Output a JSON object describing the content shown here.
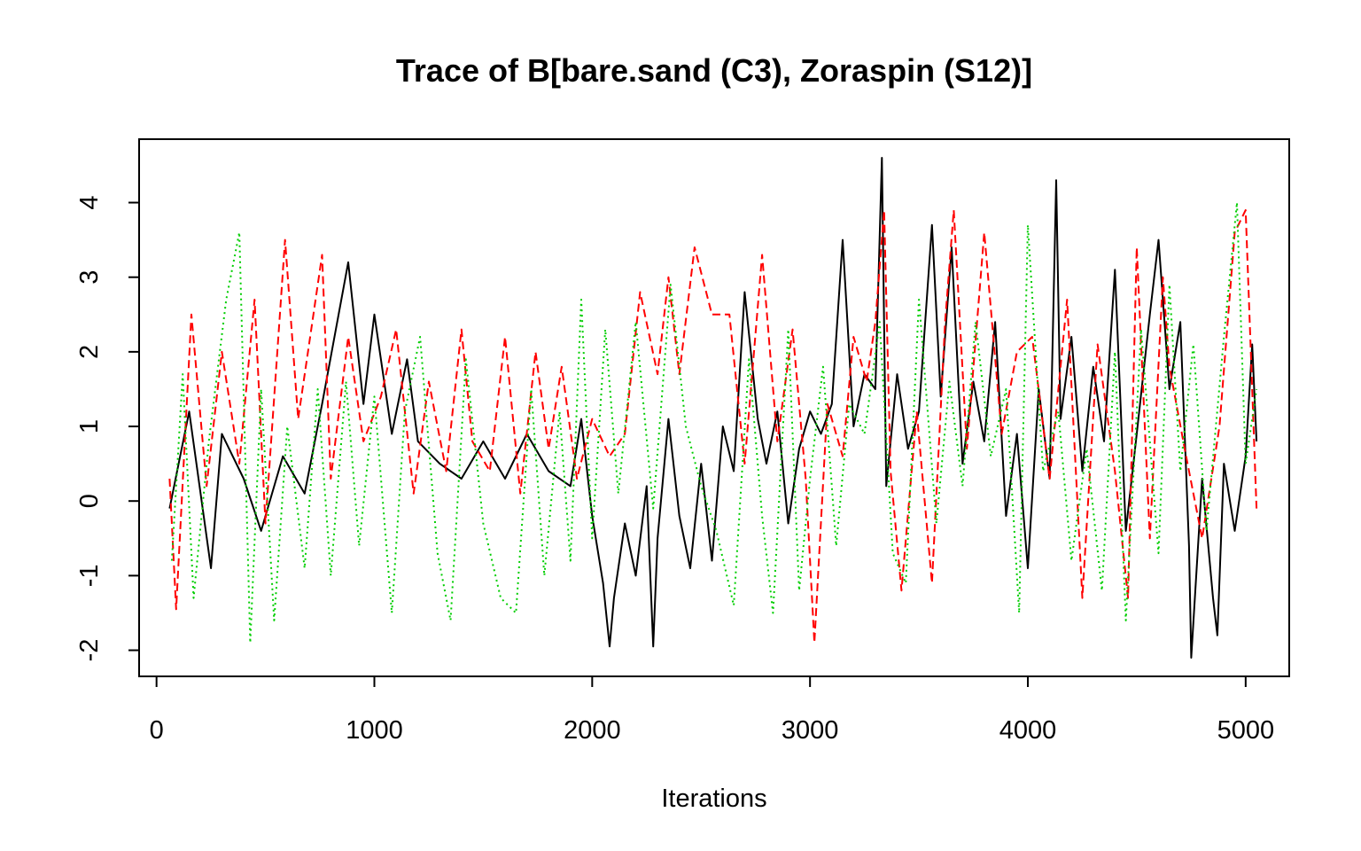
{
  "chart_data": {
    "type": "line",
    "title": "Trace of B[bare.sand (C3), Zoraspin (S12)]",
    "xlabel": "Iterations",
    "ylabel": "",
    "xlim": [
      -80,
      5200
    ],
    "ylim": [
      -2.35,
      4.85
    ],
    "xticks": [
      0,
      1000,
      2000,
      3000,
      4000,
      5000
    ],
    "xtick_labels": [
      "0",
      "1000",
      "2000",
      "3000",
      "4000",
      "5000"
    ],
    "yticks": [
      -2,
      -1,
      0,
      1,
      2,
      3,
      4
    ],
    "ytick_labels": [
      "-2",
      "-1",
      "0",
      "1",
      "2",
      "3",
      "4"
    ],
    "grid": false,
    "legend": "none",
    "series": [
      {
        "color": "#000000",
        "dash": "solid",
        "x": [
          60,
          150,
          250,
          300,
          400,
          480,
          580,
          680,
          760,
          880,
          950,
          1000,
          1080,
          1150,
          1200,
          1300,
          1400,
          1500,
          1600,
          1700,
          1800,
          1900,
          1950,
          2000,
          2050,
          2080,
          2100,
          2150,
          2200,
          2250,
          2280,
          2300,
          2350,
          2400,
          2450,
          2500,
          2550,
          2600,
          2650,
          2700,
          2760,
          2800,
          2850,
          2900,
          2950,
          3000,
          3050,
          3100,
          3150,
          3200,
          3250,
          3300,
          3330,
          3350,
          3400,
          3450,
          3500,
          3560,
          3600,
          3650,
          3700,
          3750,
          3800,
          3850,
          3900,
          3950,
          4000,
          4050,
          4100,
          4130,
          4150,
          4200,
          4250,
          4300,
          4350,
          4400,
          4450,
          4500,
          4560,
          4600,
          4650,
          4700,
          4740,
          4750,
          4800,
          4850,
          4870,
          4900,
          4950,
          5000,
          5030,
          5050
        ],
        "y": [
          -0.1,
          1.2,
          -0.9,
          0.9,
          0.3,
          -0.4,
          0.6,
          0.1,
          1.3,
          3.2,
          1.3,
          2.5,
          0.9,
          1.9,
          0.8,
          0.5,
          0.3,
          0.8,
          0.3,
          0.9,
          0.4,
          0.2,
          1.1,
          -0.2,
          -1.1,
          -1.95,
          -1.3,
          -0.3,
          -1.0,
          0.2,
          -1.95,
          -0.5,
          1.1,
          -0.2,
          -0.9,
          0.5,
          -0.8,
          1.0,
          0.4,
          2.8,
          1.1,
          0.5,
          1.2,
          -0.3,
          0.7,
          1.2,
          0.9,
          1.3,
          3.5,
          1.0,
          1.7,
          1.5,
          4.6,
          0.2,
          1.7,
          0.7,
          1.2,
          3.7,
          1.4,
          3.4,
          0.5,
          1.6,
          0.8,
          2.4,
          -0.2,
          0.9,
          -0.9,
          1.5,
          0.3,
          4.3,
          1.1,
          2.2,
          0.4,
          1.8,
          0.8,
          3.1,
          -0.4,
          0.9,
          2.5,
          3.5,
          1.5,
          2.4,
          -0.6,
          -2.1,
          0.3,
          -1.3,
          -1.8,
          0.5,
          -0.4,
          0.6,
          2.1,
          0.8
        ]
      },
      {
        "color": "#ff0000",
        "dash": "dashed",
        "x": [
          60,
          90,
          160,
          230,
          300,
          380,
          450,
          500,
          590,
          650,
          700,
          760,
          800,
          880,
          950,
          1030,
          1100,
          1180,
          1250,
          1330,
          1400,
          1450,
          1530,
          1600,
          1670,
          1740,
          1800,
          1860,
          1930,
          2000,
          2080,
          2150,
          2220,
          2300,
          2350,
          2400,
          2470,
          2550,
          2630,
          2700,
          2780,
          2850,
          2920,
          2980,
          3020,
          3080,
          3150,
          3200,
          3260,
          3300,
          3340,
          3370,
          3420,
          3490,
          3560,
          3620,
          3660,
          3720,
          3800,
          3880,
          3950,
          4020,
          4100,
          4180,
          4250,
          4320,
          4400,
          4460,
          4500,
          4560,
          4620,
          4650,
          4720,
          4800,
          4880,
          4950,
          5000,
          5050
        ],
        "y": [
          0.3,
          -1.45,
          2.5,
          0.2,
          2.0,
          0.5,
          2.7,
          -0.3,
          3.5,
          1.1,
          2.1,
          3.3,
          0.3,
          2.2,
          0.8,
          1.4,
          2.3,
          0.1,
          1.6,
          0.4,
          2.3,
          0.8,
          0.4,
          2.2,
          0.1,
          2.0,
          0.7,
          1.8,
          0.3,
          1.1,
          0.6,
          0.9,
          2.8,
          1.7,
          3.0,
          1.7,
          3.4,
          2.5,
          2.5,
          0.5,
          3.3,
          0.8,
          2.3,
          0.3,
          -1.9,
          1.3,
          0.6,
          2.2,
          1.6,
          2.4,
          3.9,
          0.4,
          -1.2,
          1.2,
          -1.1,
          2.4,
          3.9,
          0.7,
          3.6,
          0.9,
          2.0,
          2.2,
          0.3,
          2.7,
          -1.3,
          2.1,
          0.4,
          -1.3,
          3.4,
          -0.5,
          3.0,
          1.8,
          0.7,
          -0.5,
          1.0,
          3.6,
          3.9,
          -0.1
        ]
      },
      {
        "color": "#00cd00",
        "dash": "dotted",
        "x": [
          70,
          120,
          170,
          240,
          320,
          380,
          430,
          480,
          540,
          600,
          680,
          740,
          800,
          870,
          930,
          1000,
          1080,
          1140,
          1210,
          1290,
          1350,
          1420,
          1500,
          1580,
          1650,
          1720,
          1780,
          1850,
          1900,
          1950,
          2000,
          2060,
          2120,
          2200,
          2280,
          2360,
          2430,
          2500,
          2570,
          2650,
          2720,
          2780,
          2830,
          2900,
          2950,
          3000,
          3060,
          3120,
          3180,
          3250,
          3320,
          3380,
          3440,
          3500,
          3580,
          3640,
          3700,
          3760,
          3830,
          3900,
          3960,
          4000,
          4070,
          4140,
          4200,
          4270,
          4340,
          4400,
          4450,
          4520,
          4600,
          4650,
          4700,
          4760,
          4820,
          4900,
          4960,
          5000,
          5050
        ],
        "y": [
          -0.8,
          1.7,
          -1.3,
          0.8,
          2.7,
          3.6,
          -1.9,
          1.5,
          -1.6,
          1.0,
          -0.9,
          1.5,
          -1.0,
          1.6,
          -0.6,
          1.4,
          -1.5,
          1.2,
          2.2,
          -0.7,
          -1.6,
          1.9,
          -0.3,
          -1.3,
          -1.5,
          1.5,
          -1.0,
          1.2,
          -0.8,
          2.7,
          -0.5,
          2.3,
          0.1,
          2.4,
          -0.1,
          2.9,
          1.0,
          0.2,
          -0.4,
          -1.4,
          1.9,
          -0.2,
          -1.5,
          2.3,
          -1.2,
          0.3,
          1.8,
          -0.6,
          1.3,
          0.9,
          2.4,
          -0.7,
          -1.1,
          2.7,
          -0.3,
          1.6,
          0.2,
          2.4,
          0.6,
          1.5,
          -1.5,
          3.7,
          0.4,
          1.2,
          -0.8,
          0.7,
          -1.2,
          2.0,
          -1.6,
          2.3,
          -0.7,
          2.9,
          0.4,
          2.1,
          -0.4,
          2.2,
          4.0,
          0.5,
          1.5
        ]
      }
    ]
  }
}
